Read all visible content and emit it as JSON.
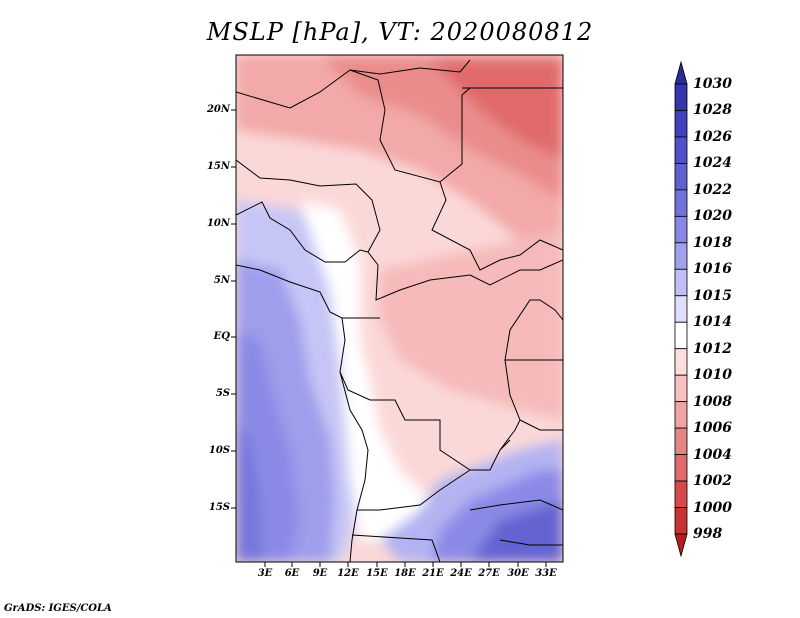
{
  "title": "MSLP [hPa], VT: 2020080812",
  "footer": "GrADS: IGES/COLA",
  "map": {
    "y_ticks": [
      "20N",
      "15N",
      "10N",
      "5N",
      "EQ",
      "5S",
      "10S",
      "15S"
    ],
    "x_ticks": [
      "3E",
      "6E",
      "9E",
      "12E",
      "15E",
      "18E",
      "21E",
      "24E",
      "27E",
      "30E",
      "33E"
    ]
  },
  "colorbar": {
    "labels": [
      "1030",
      "1028",
      "1026",
      "1024",
      "1022",
      "1020",
      "1018",
      "1016",
      "1015",
      "1014",
      "1012",
      "1010",
      "1008",
      "1006",
      "1004",
      "1002",
      "1000",
      "998"
    ],
    "colors": [
      "#2a2a9a",
      "#3535ad",
      "#4141bd",
      "#5050c8",
      "#6060d0",
      "#7272db",
      "#8888e4",
      "#a0a0ee",
      "#c0c0f5",
      "#dedefb",
      "#ffffff",
      "#fcdede",
      "#f8c0c0",
      "#f0a3a3",
      "#e58686",
      "#dd6b6b",
      "#d54a4a",
      "#c83232",
      "#b91c1c"
    ]
  }
}
